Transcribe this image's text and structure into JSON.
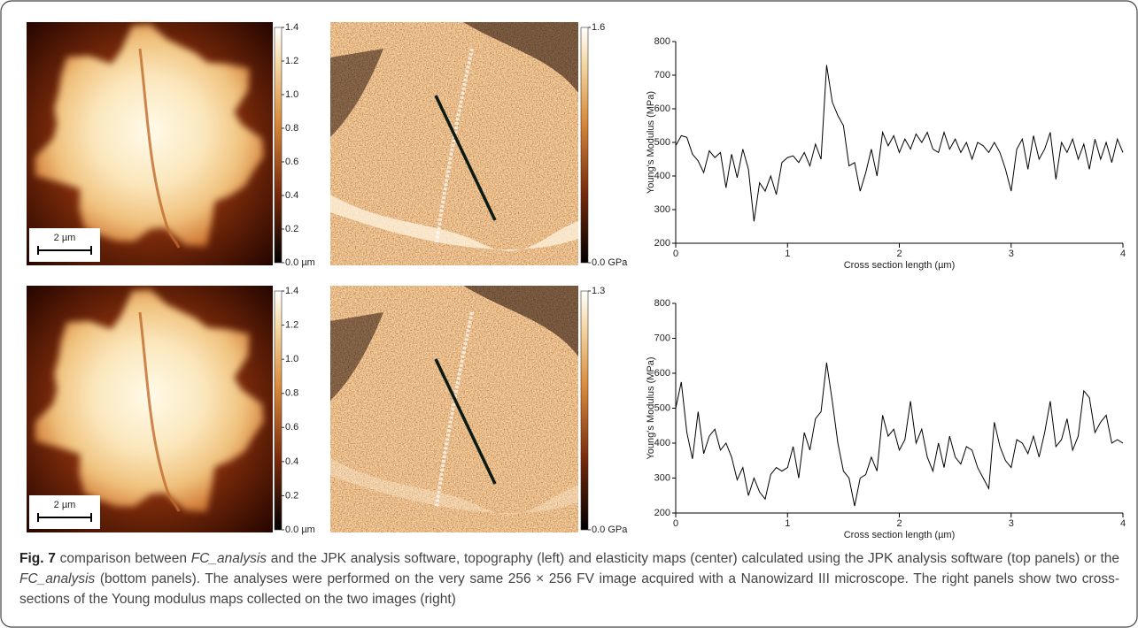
{
  "rows": [
    {
      "topography": {
        "scale_bar": "2 µm",
        "colorbar_ticks": [
          1.4,
          1.2,
          {
            "value": 1,
            "label": "1.0"
          },
          0.8,
          0.6,
          0.4,
          0.2,
          {
            "value": 0,
            "label": "0.0 µm"
          }
        ]
      },
      "elasticity": {
        "colorbar_ticks": [
          1.6,
          {
            "value": 0,
            "label": "0.0 GPa"
          }
        ]
      }
    },
    {
      "topography": {
        "scale_bar": "2 µm",
        "colorbar_ticks": [
          1.4,
          1.2,
          {
            "value": 1,
            "label": "1.0"
          },
          0.8,
          0.6,
          0.4,
          0.2,
          {
            "value": 0,
            "label": "0.0 µm"
          }
        ]
      },
      "elasticity": {
        "colorbar_ticks": [
          1.3,
          {
            "value": 0,
            "label": "0.0 GPa"
          }
        ]
      }
    }
  ],
  "chart_data": [
    {
      "type": "line",
      "xlabel": "Cross section length (µm)",
      "ylabel": "Young's Modulus (MPa)",
      "color": "#000000",
      "xlim": [
        0,
        4
      ],
      "ylim": [
        200,
        800
      ],
      "xticks": [
        0,
        1,
        2,
        3,
        4
      ],
      "yticks": [
        200,
        300,
        400,
        500,
        600,
        700,
        800
      ],
      "x": [
        0,
        0.05,
        0.1,
        0.15,
        0.2,
        0.25,
        0.3,
        0.35,
        0.4,
        0.45,
        0.5,
        0.55,
        0.6,
        0.65,
        0.7,
        0.75,
        0.8,
        0.85,
        0.9,
        0.95,
        1,
        1.05,
        1.1,
        1.15,
        1.2,
        1.25,
        1.3,
        1.35,
        1.4,
        1.45,
        1.5,
        1.55,
        1.6,
        1.65,
        1.7,
        1.75,
        1.8,
        1.85,
        1.9,
        1.95,
        2,
        2.05,
        2.1,
        2.15,
        2.2,
        2.25,
        2.3,
        2.35,
        2.4,
        2.45,
        2.5,
        2.55,
        2.6,
        2.65,
        2.7,
        2.75,
        2.8,
        2.85,
        2.9,
        2.95,
        3,
        3.05,
        3.1,
        3.15,
        3.2,
        3.25,
        3.3,
        3.35,
        3.4,
        3.45,
        3.5,
        3.55,
        3.6,
        3.65,
        3.7,
        3.75,
        3.8,
        3.85,
        3.9,
        3.95,
        4
      ],
      "values": [
        490,
        520,
        515,
        465,
        445,
        410,
        475,
        455,
        470,
        365,
        465,
        395,
        480,
        420,
        265,
        380,
        355,
        400,
        345,
        440,
        455,
        460,
        440,
        470,
        430,
        495,
        450,
        730,
        620,
        580,
        550,
        430,
        440,
        355,
        410,
        480,
        400,
        530,
        490,
        520,
        470,
        510,
        480,
        525,
        500,
        530,
        480,
        470,
        530,
        480,
        510,
        470,
        500,
        450,
        500,
        490,
        470,
        500,
        470,
        420,
        355,
        480,
        510,
        420,
        520,
        450,
        480,
        530,
        390,
        500,
        470,
        510,
        450,
        495,
        420,
        510,
        450,
        500,
        440,
        510,
        470
      ]
    },
    {
      "type": "line",
      "xlabel": "Cross section length (µm)",
      "ylabel": "Young's Modulus (MPa)",
      "color": "#000000",
      "xlim": [
        0,
        4
      ],
      "ylim": [
        200,
        800
      ],
      "xticks": [
        0,
        1,
        2,
        3,
        4
      ],
      "yticks": [
        200,
        300,
        400,
        500,
        600,
        700,
        800
      ],
      "x": [
        0,
        0.05,
        0.1,
        0.15,
        0.2,
        0.25,
        0.3,
        0.35,
        0.4,
        0.45,
        0.5,
        0.55,
        0.6,
        0.65,
        0.7,
        0.75,
        0.8,
        0.85,
        0.9,
        0.95,
        1,
        1.05,
        1.1,
        1.15,
        1.2,
        1.25,
        1.3,
        1.35,
        1.4,
        1.45,
        1.5,
        1.55,
        1.6,
        1.65,
        1.7,
        1.75,
        1.8,
        1.85,
        1.9,
        1.95,
        2,
        2.05,
        2.1,
        2.15,
        2.2,
        2.25,
        2.3,
        2.35,
        2.4,
        2.45,
        2.5,
        2.55,
        2.6,
        2.65,
        2.7,
        2.75,
        2.8,
        2.85,
        2.9,
        2.95,
        3,
        3.05,
        3.1,
        3.15,
        3.2,
        3.25,
        3.3,
        3.35,
        3.4,
        3.45,
        3.5,
        3.55,
        3.6,
        3.65,
        3.7,
        3.75,
        3.8,
        3.85,
        3.9,
        3.95,
        4
      ],
      "values": [
        500,
        575,
        430,
        355,
        490,
        370,
        420,
        440,
        380,
        400,
        360,
        295,
        330,
        250,
        300,
        260,
        240,
        310,
        330,
        320,
        330,
        390,
        300,
        430,
        380,
        470,
        490,
        630,
        520,
        400,
        320,
        300,
        220,
        300,
        310,
        360,
        320,
        480,
        420,
        440,
        380,
        410,
        520,
        400,
        440,
        360,
        320,
        400,
        330,
        420,
        360,
        340,
        390,
        380,
        330,
        300,
        270,
        460,
        390,
        350,
        330,
        410,
        400,
        370,
        420,
        360,
        430,
        520,
        390,
        410,
        470,
        380,
        420,
        550,
        530,
        430,
        460,
        480,
        400,
        410,
        400
      ]
    }
  ],
  "caption": {
    "label": "Fig. 7",
    "segments": [
      {
        "text": "comparison between",
        "italic": false
      },
      {
        "text": "FC_analysis",
        "italic": true
      },
      {
        "text": "and the JPK analysis software, topography (left) and elasticity maps (center) calculated using the JPK analysis software (top panels) or the",
        "italic": false
      },
      {
        "text": "FC_analysis",
        "italic": true
      },
      {
        "text": "(bottom panels). The analyses were performed on the very same 256 × 256 FV image acquired with a Nanowizard III microscope. The right panels show two cross-sections of the Young modulus maps collected on the two images (right)",
        "italic": false
      }
    ]
  }
}
